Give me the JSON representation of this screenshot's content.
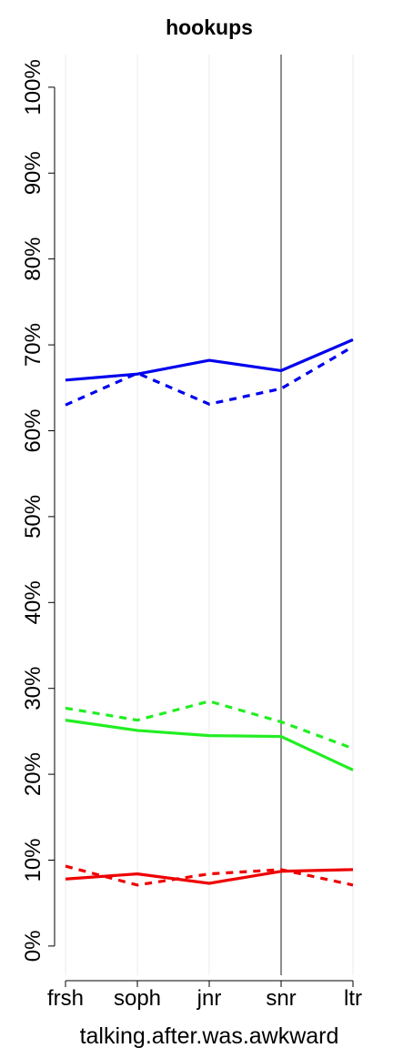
{
  "chart_data": {
    "type": "line",
    "title": "hookups",
    "x_label": "talking.after.was.awkward",
    "categories": [
      "frsh",
      "soph",
      "jnr",
      "snr",
      "ltr"
    ],
    "ylim": [
      -3.4,
      103.8
    ],
    "yticks": [
      {
        "value": 0,
        "label": "0%"
      },
      {
        "value": 10,
        "label": "10%"
      },
      {
        "value": 20,
        "label": "20%"
      },
      {
        "value": 30,
        "label": "30%"
      },
      {
        "value": 40,
        "label": "40%"
      },
      {
        "value": 50,
        "label": "50%"
      },
      {
        "value": 60,
        "label": "60%"
      },
      {
        "value": 70,
        "label": "70%"
      },
      {
        "value": 80,
        "label": "80%"
      },
      {
        "value": 90,
        "label": "90%"
      },
      {
        "value": 100,
        "label": "100%"
      }
    ],
    "grid": true,
    "series": [
      {
        "color": "#0000ee",
        "dashed": false,
        "values": [
          65.9,
          66.6,
          68.2,
          67.0,
          70.6
        ]
      },
      {
        "color": "#0000ee",
        "dashed": true,
        "values": [
          63.0,
          66.7,
          63.1,
          64.9,
          69.8
        ]
      },
      {
        "color": "#22ee22",
        "dashed": false,
        "values": [
          26.3,
          25.1,
          24.5,
          24.4,
          20.5
        ]
      },
      {
        "color": "#22ee22",
        "dashed": true,
        "values": [
          27.7,
          26.3,
          28.5,
          26.1,
          23.0
        ]
      },
      {
        "color": "#ee0000",
        "dashed": false,
        "values": [
          7.8,
          8.4,
          7.3,
          8.7,
          8.9
        ]
      },
      {
        "color": "#ee0000",
        "dashed": true,
        "values": [
          9.3,
          7.1,
          8.4,
          8.9,
          7.1
        ]
      }
    ]
  }
}
